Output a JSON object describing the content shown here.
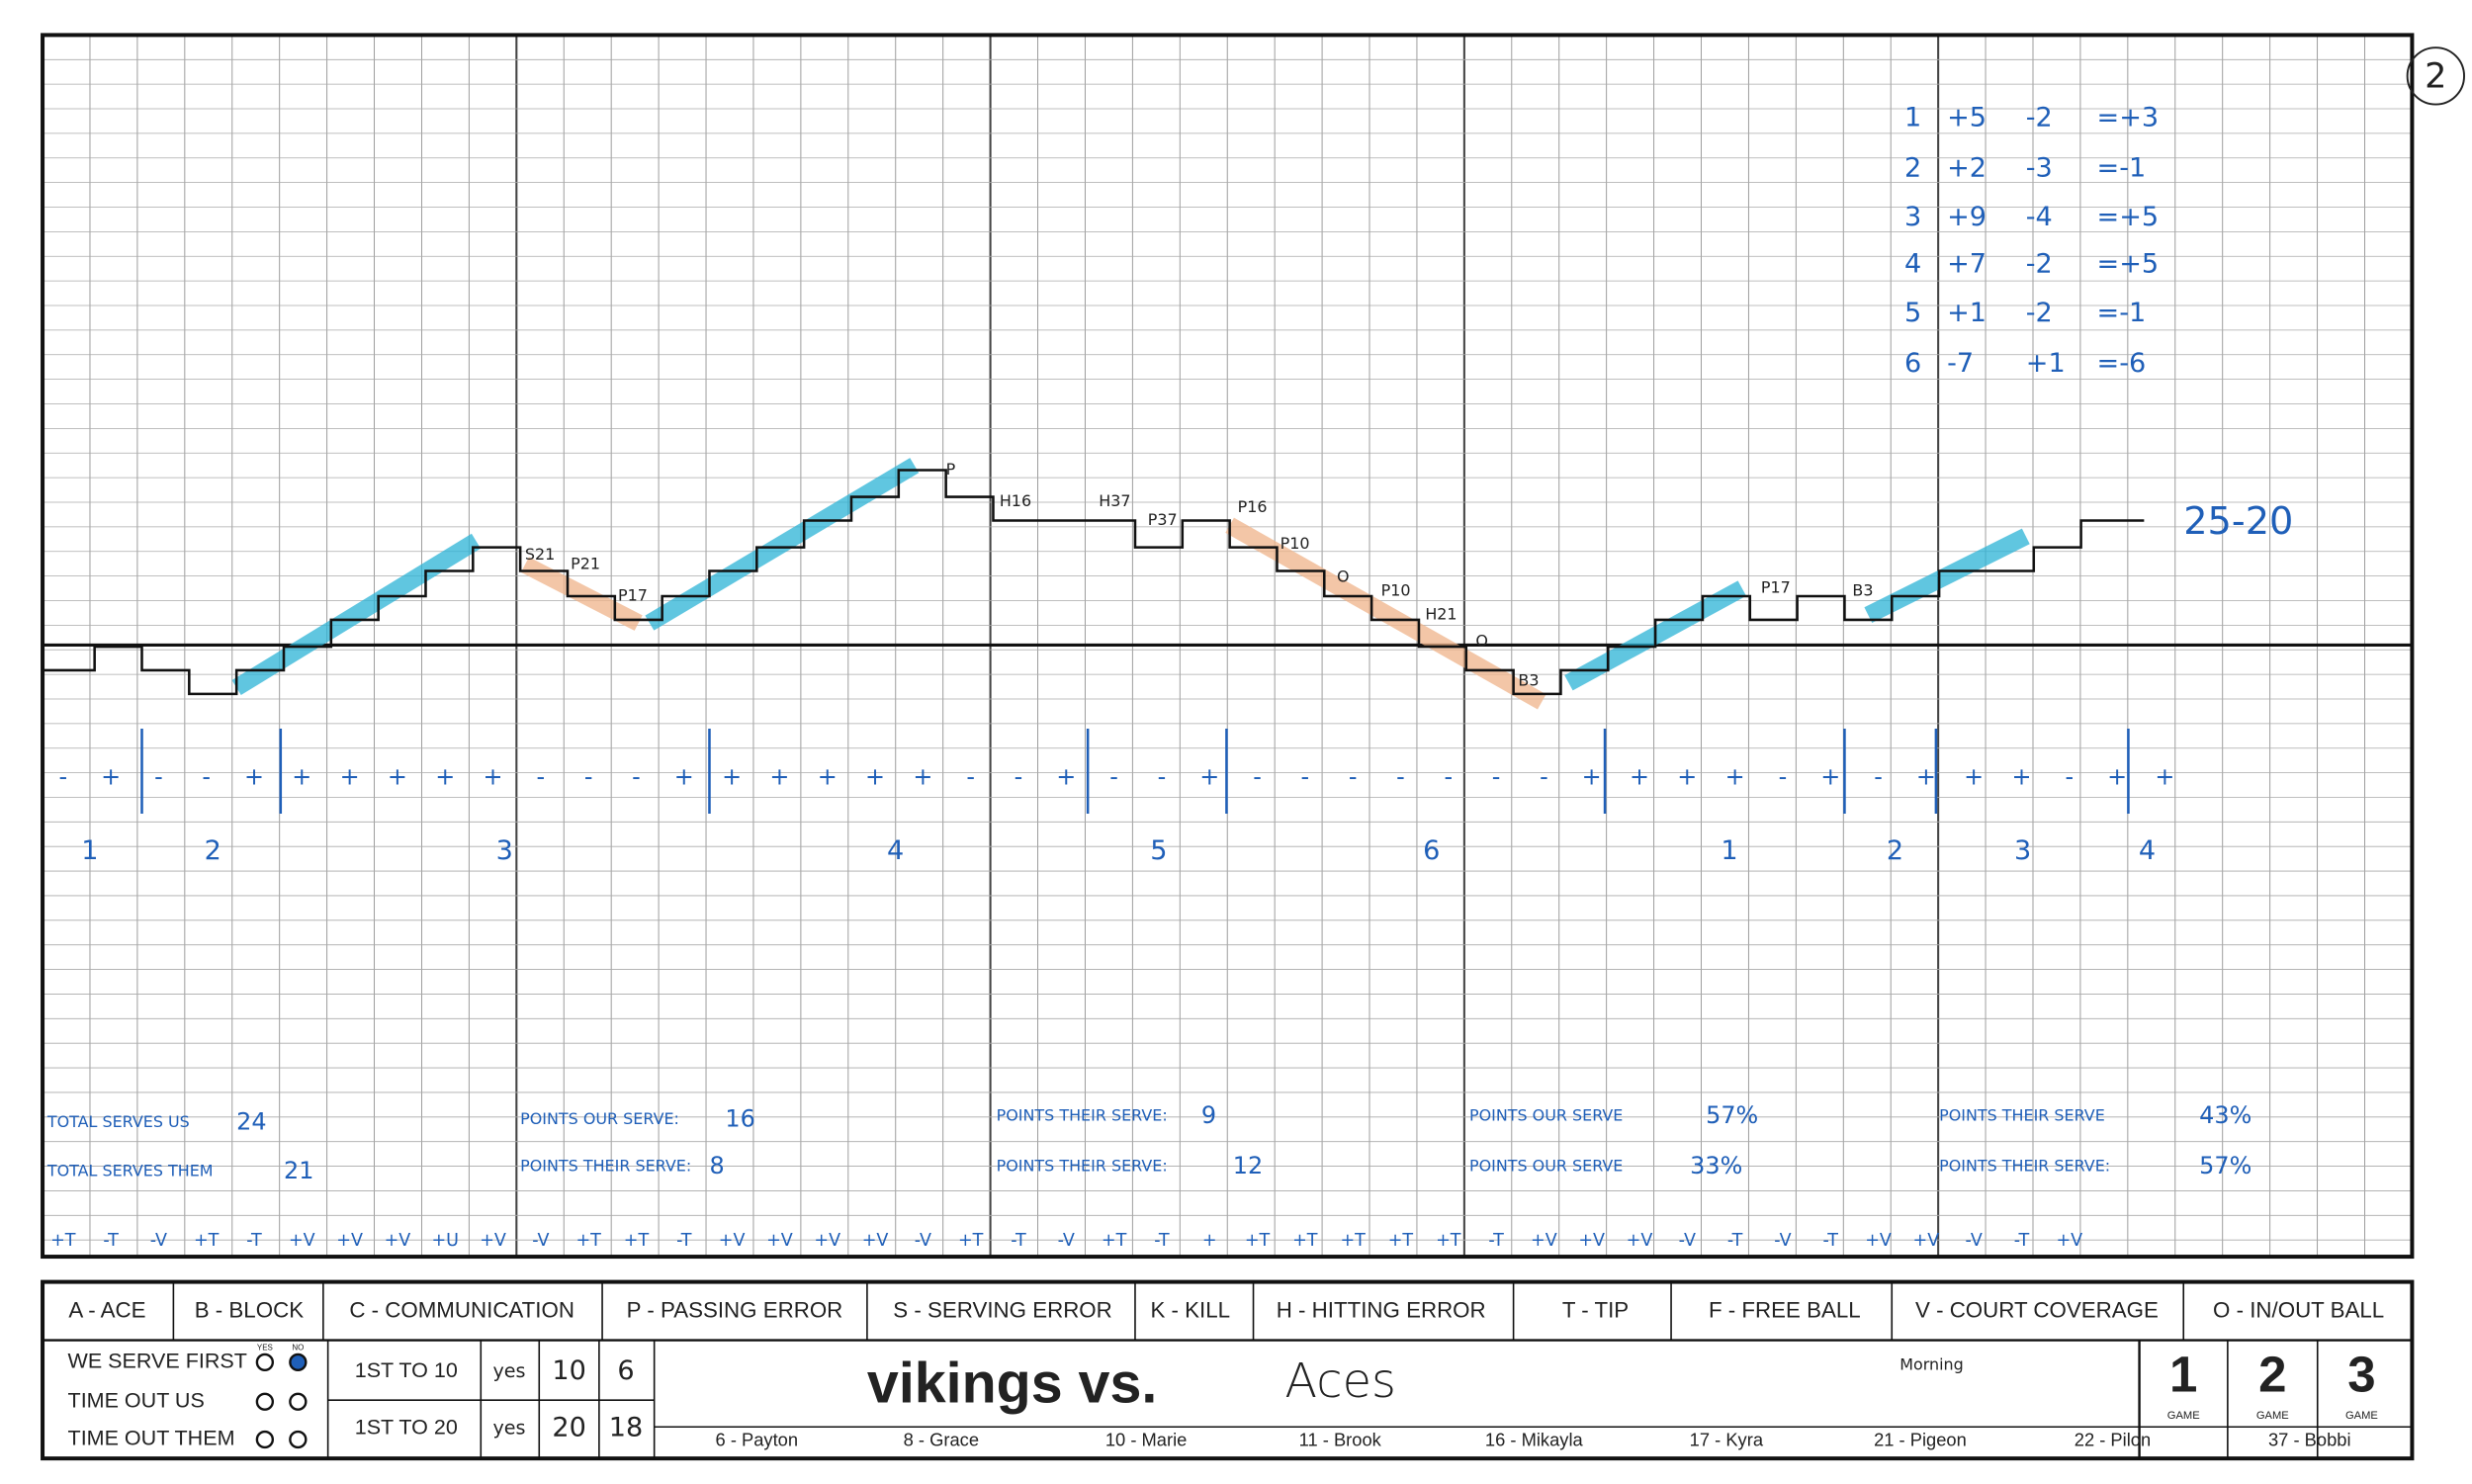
{
  "page_number": "2",
  "rotation_summary": {
    "rows": [
      [
        "1",
        "+5",
        "-2",
        "=+3"
      ],
      [
        "2",
        "+2",
        "-3",
        "=-1"
      ],
      [
        "3",
        "+9",
        "-4",
        "=+5"
      ],
      [
        "4",
        "+7",
        "-2",
        "=+5"
      ],
      [
        "5",
        "+1",
        "-2",
        "=-1"
      ],
      [
        "6",
        "-7",
        "+1",
        "=-6"
      ]
    ]
  },
  "final_score": "25-20",
  "point_notes": [
    "S21",
    "P21",
    "P17",
    "P",
    "H16",
    "H37",
    "P37",
    "P16",
    "P10",
    "O",
    "P10",
    "H21",
    "O",
    "B3",
    "P17",
    "B3"
  ],
  "rally_signs": [
    "-",
    "+",
    "-",
    "-",
    "+",
    "+",
    "+",
    "+",
    "+",
    "+",
    "-",
    "-",
    "-",
    "+",
    "+",
    "+",
    "+",
    "+",
    "+",
    "-",
    "-",
    "+",
    "-",
    "-",
    "+",
    "-",
    "-",
    "-",
    "-",
    "-",
    "-",
    "-",
    "+",
    "+",
    "+",
    "+",
    "-",
    "+",
    "-",
    "+",
    "+",
    "+",
    "-",
    "+",
    "+"
  ],
  "rotations": [
    "1",
    "2",
    "3",
    "4",
    "5",
    "6",
    "1",
    "2",
    "3",
    "4"
  ],
  "stats": [
    {
      "label": "TOTAL SERVES US",
      "value": "24"
    },
    {
      "label": "TOTAL SERVES THEM",
      "value": "21"
    },
    {
      "label": "POINTS OUR SERVE:",
      "value": "16"
    },
    {
      "label": "POINTS THEIR SERVE:",
      "value": "8"
    },
    {
      "label": "POINTS THEIR SERVE:",
      "value": "9"
    },
    {
      "label": "POINTS THEIR SERVE:",
      "value": "12"
    },
    {
      "label": "POINTS OUR SERVE",
      "value": "57%"
    },
    {
      "label": "POINTS OUR SERVE",
      "value": "33%"
    },
    {
      "label": "POINTS THEIR SERVE",
      "value": "43%"
    },
    {
      "label": "POINTS THEIR SERVE:",
      "value": "57%"
    }
  ],
  "rally_codes": [
    "+T",
    "-T",
    "-V",
    "+T",
    "-T",
    "+V",
    "+V",
    "+V",
    "+U",
    "+V",
    "-V",
    "+T",
    "+T",
    "-T",
    "+V",
    "+V",
    "+V",
    "+V",
    "-V",
    "+T",
    "-T",
    "-V",
    "+T",
    "-T",
    "+",
    "+T",
    "+T",
    "+T",
    "+T",
    "+T",
    "-T",
    "+V",
    "+V",
    "+V",
    "-V",
    "-T",
    "-V",
    "-T",
    "+V",
    "+V",
    "-V",
    "-T",
    "+V"
  ],
  "legend": [
    "A - ACE",
    "B - BLOCK",
    "C - COMMUNICATION",
    "P - PASSING ERROR",
    "S - SERVING ERROR",
    "K - KILL",
    "H - HITTING ERROR",
    "T - TIP",
    "F - FREE BALL",
    "V - COURT COVERAGE",
    "O - IN/OUT BALL"
  ],
  "match_info": {
    "labels": [
      "WE SERVE FIRST",
      "TIME OUT US",
      "TIME OUT THEM"
    ],
    "serve_options": [
      "YES",
      "NO"
    ],
    "first_to": [
      {
        "label": "1ST TO 10",
        "entries": [
          "yes",
          "10",
          "6"
        ]
      },
      {
        "label": "1ST TO 20",
        "entries": [
          "yes",
          "20",
          "18"
        ]
      }
    ],
    "team": "vikings vs.",
    "opponent": "Aces",
    "time": "Morning",
    "games": [
      "1",
      "2",
      "3"
    ],
    "game_label": "GAME",
    "roster": [
      "6 - Payton",
      "8 - Grace",
      "10 - Marie",
      "11 - Brook",
      "16 - Mikayla",
      "17 - Kyra",
      "21 - Pigeon",
      "22 - Pilon",
      "37 - Bobbi"
    ]
  }
}
